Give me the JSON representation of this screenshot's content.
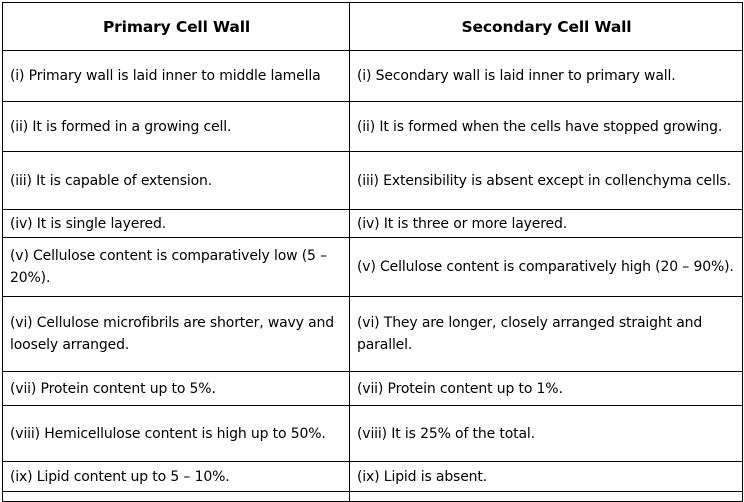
{
  "table": {
    "headers": [
      "Primary Cell Wall",
      "Secondary Cell Wall"
    ],
    "rows": [
      [
        "(i) Primary wall is laid inner to middle lamella",
        "(i) Secondary wall is laid inner to primary wall."
      ],
      [
        "(ii) It is formed in a growing cell.",
        "(ii) It is formed when the cells have stopped growing."
      ],
      [
        "(iii) It is capable of extension.",
        "(iii) Extensibility is absent except in collenchyma cells."
      ],
      [
        "(iv) It is single layered.",
        "(iv) It is three or more layered."
      ],
      [
        "(v) Cellulose content is comparatively low (5 – 20%).",
        "(v) Cellulose content is comparatively high (20 – 90%)."
      ],
      [
        "(vi) Cellulose microfibrils are shorter, wavy and loosely arranged.",
        "(vi) They are longer, closely arranged straight and parallel."
      ],
      [
        "(vii) Protein content up to 5%.",
        "(vii) Protein content up to 1%."
      ],
      [
        "(viii) Hemicellulose content is high up to 50%.",
        "(viii) It is 25% of the total."
      ],
      [
        "(ix) Lipid content up to 5 – 10%.",
        "(ix) Lipid is absent."
      ],
      [
        "",
        ""
      ]
    ]
  }
}
